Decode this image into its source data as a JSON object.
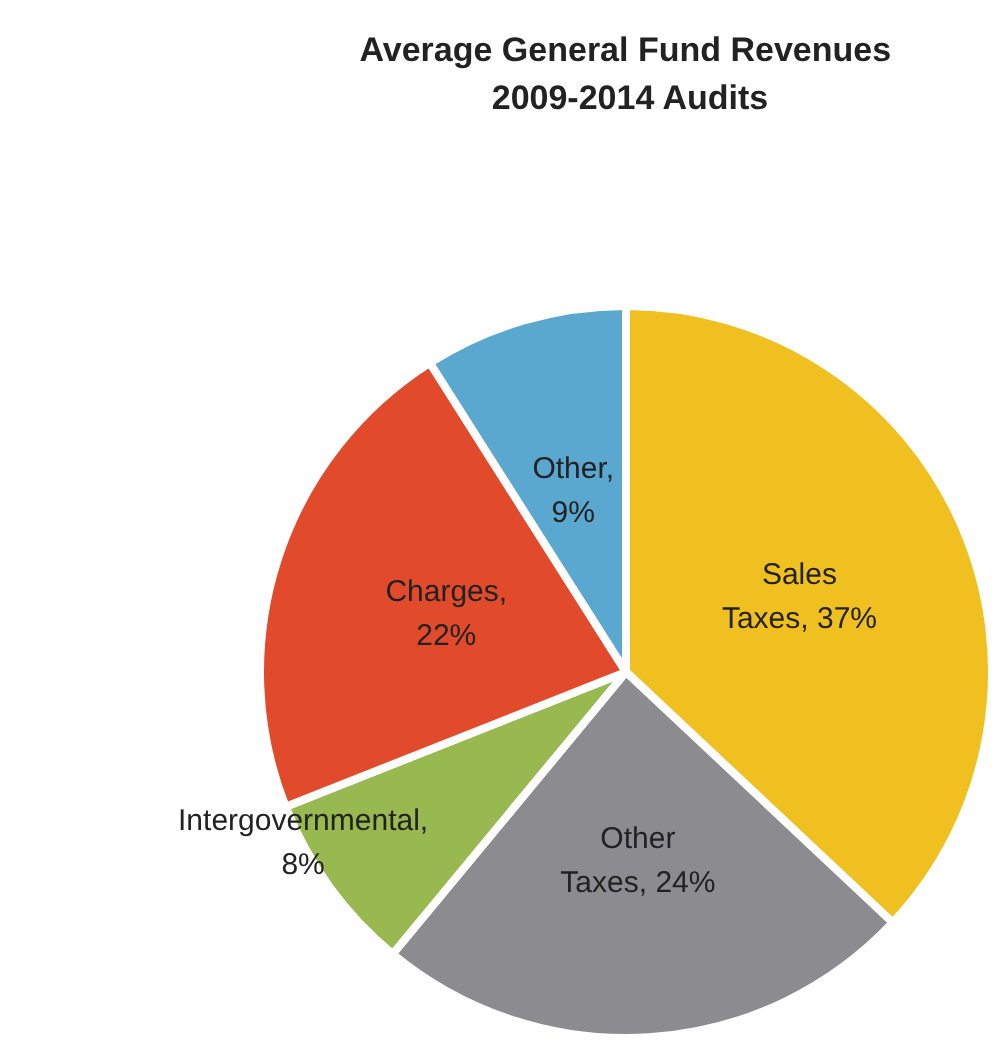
{
  "chart_data": {
    "type": "pie",
    "title": "Average General Fund Revenues 2009-2014 Audits",
    "categories": [
      "Sales Taxes, 37%",
      "Other Taxes, 24%",
      "Intergovernmental, 8%",
      "Charges, 22%",
      "Other, 9%"
    ],
    "values": [
      37,
      24,
      8,
      22,
      9
    ],
    "colors": [
      "#f0c020",
      "#8c8c90",
      "#98b850",
      "#e24a2c",
      "#5aa8d0"
    ],
    "legend": false
  }
}
